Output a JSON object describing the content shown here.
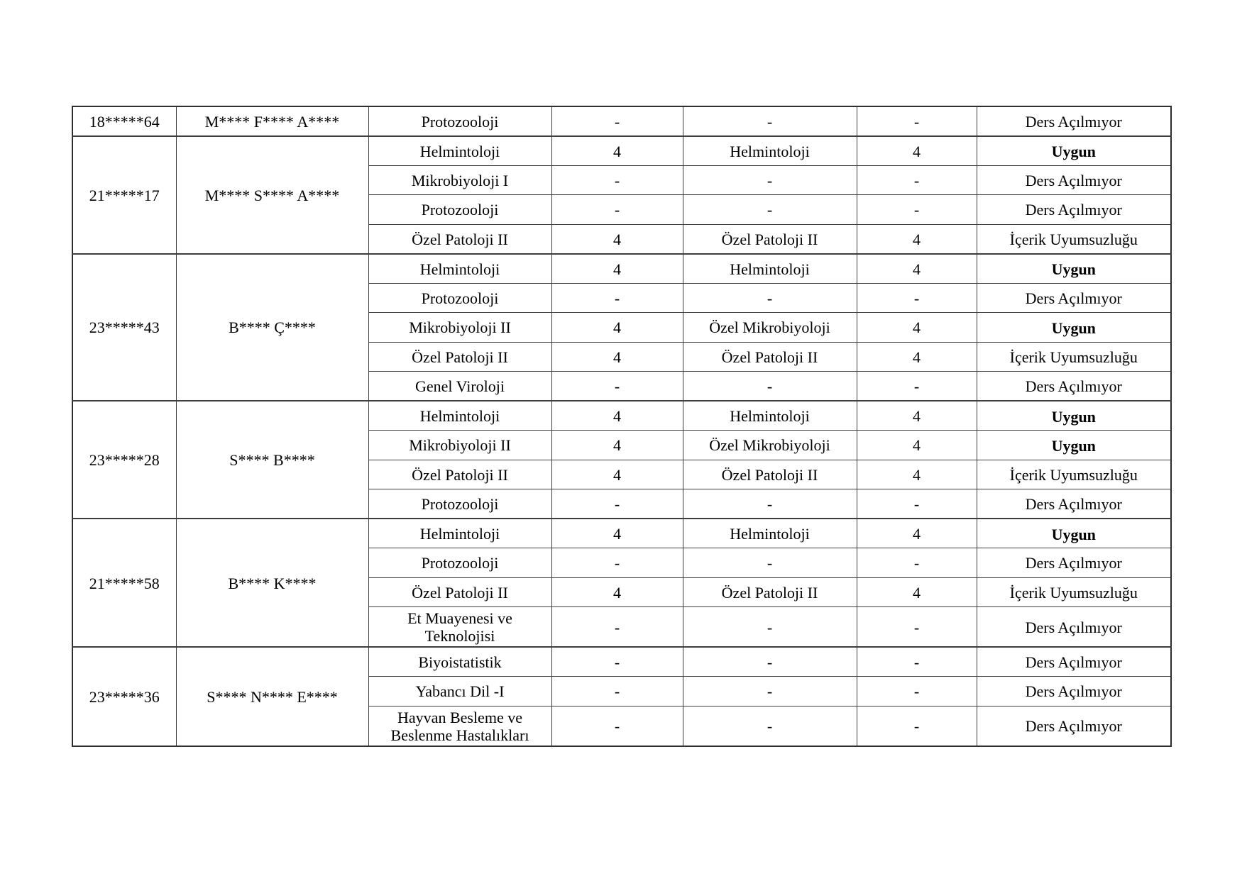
{
  "page": {
    "background": "#ffffff",
    "text_color": "#000000",
    "table_border_color": "#3d3d3d"
  },
  "table": {
    "groups": [
      {
        "student_id": "18*****64",
        "student_name": "M**** F**** A****",
        "courses": [
          {
            "course": "Protozooloji",
            "credit": "-",
            "equivalent_course": "-",
            "equivalent_credit": "-",
            "status": "Ders Açılmıyor"
          }
        ]
      },
      {
        "student_id": "21*****17",
        "student_name": "M**** S**** A****",
        "courses": [
          {
            "course": "Helmintoloji",
            "credit": "4",
            "equivalent_course": "Helmintoloji",
            "equivalent_credit": "4",
            "status": "Uygun"
          },
          {
            "course": "Mikrobiyoloji I",
            "credit": "-",
            "equivalent_course": "-",
            "equivalent_credit": "-",
            "status": "Ders Açılmıyor"
          },
          {
            "course": "Protozooloji",
            "credit": "-",
            "equivalent_course": "-",
            "equivalent_credit": "-",
            "status": "Ders Açılmıyor"
          },
          {
            "course": "Özel Patoloji II",
            "credit": "4",
            "equivalent_course": "Özel Patoloji II",
            "equivalent_credit": "4",
            "status": "İçerik Uyumsuzluğu"
          }
        ]
      },
      {
        "student_id": "23*****43",
        "student_name": "B**** Ç****",
        "courses": [
          {
            "course": "Helmintoloji",
            "credit": "4",
            "equivalent_course": "Helmintoloji",
            "equivalent_credit": "4",
            "status": "Uygun"
          },
          {
            "course": "Protozooloji",
            "credit": "-",
            "equivalent_course": "-",
            "equivalent_credit": "-",
            "status": "Ders Açılmıyor"
          },
          {
            "course": "Mikrobiyoloji II",
            "credit": "4",
            "equivalent_course": "Özel Mikrobiyoloji",
            "equivalent_credit": "4",
            "status": "Uygun"
          },
          {
            "course": "Özel Patoloji II",
            "credit": "4",
            "equivalent_course": "Özel Patoloji II",
            "equivalent_credit": "4",
            "status": "İçerik Uyumsuzluğu"
          },
          {
            "course": "Genel Viroloji",
            "credit": "-",
            "equivalent_course": "-",
            "equivalent_credit": "-",
            "status": "Ders Açılmıyor"
          }
        ]
      },
      {
        "student_id": "23*****28",
        "student_name": "S**** B****",
        "courses": [
          {
            "course": "Helmintoloji",
            "credit": "4",
            "equivalent_course": "Helmintoloji",
            "equivalent_credit": "4",
            "status": "Uygun"
          },
          {
            "course": "Mikrobiyoloji II",
            "credit": "4",
            "equivalent_course": "Özel Mikrobiyoloji",
            "equivalent_credit": "4",
            "status": "Uygun"
          },
          {
            "course": "Özel Patoloji II",
            "credit": "4",
            "equivalent_course": "Özel Patoloji II",
            "equivalent_credit": "4",
            "status": "İçerik Uyumsuzluğu"
          },
          {
            "course": "Protozooloji",
            "credit": "-",
            "equivalent_course": "-",
            "equivalent_credit": "-",
            "status": "Ders Açılmıyor"
          }
        ]
      },
      {
        "student_id": "21*****58",
        "student_name": "B**** K****",
        "courses": [
          {
            "course": "Helmintoloji",
            "credit": "4",
            "equivalent_course": "Helmintoloji",
            "equivalent_credit": "4",
            "status": "Uygun"
          },
          {
            "course": "Protozooloji",
            "credit": "-",
            "equivalent_course": "-",
            "equivalent_credit": "-",
            "status": "Ders Açılmıyor"
          },
          {
            "course": "Özel Patoloji II",
            "credit": "4",
            "equivalent_course": "Özel Patoloji II",
            "equivalent_credit": "4",
            "status": "İçerik Uyumsuzluğu"
          },
          {
            "course": "Et Muayenesi ve Teknolojisi",
            "credit": "-",
            "equivalent_course": "-",
            "equivalent_credit": "-",
            "status": "Ders Açılmıyor"
          }
        ]
      },
      {
        "student_id": "23*****36",
        "student_name": "S**** N**** E****",
        "courses": [
          {
            "course": "Biyoistatistik",
            "credit": "-",
            "equivalent_course": "-",
            "equivalent_credit": "-",
            "status": "Ders Açılmıyor"
          },
          {
            "course": "Yabancı Dil -I",
            "credit": "-",
            "equivalent_course": "-",
            "equivalent_credit": "-",
            "status": "Ders Açılmıyor"
          },
          {
            "course": "Hayvan Besleme ve Beslenme Hastalıkları",
            "credit": "-",
            "equivalent_course": "-",
            "equivalent_credit": "-",
            "status": "Ders Açılmıyor"
          }
        ]
      }
    ]
  }
}
